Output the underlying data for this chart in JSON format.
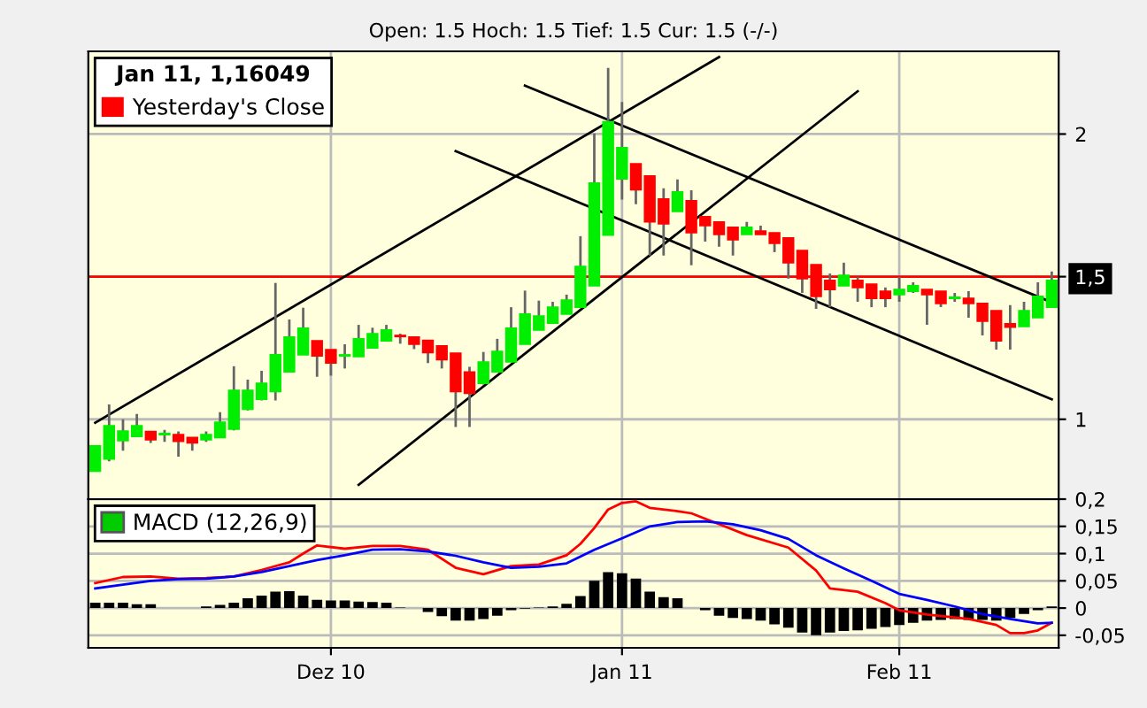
{
  "chart_data": [
    {
      "type": "candlestick",
      "subtitle": "Open: 1.5 Hoch: 1.5 Tief: 1.5 Cur: 1.5 (-/-)",
      "categories": [
        null,
        null,
        null,
        null,
        null,
        null,
        null,
        null,
        null,
        null,
        null,
        null,
        null,
        null,
        null,
        null,
        null,
        null,
        null,
        null,
        null,
        null,
        null,
        null,
        null,
        null,
        null,
        null,
        null,
        null,
        null,
        null,
        null,
        null,
        null,
        null,
        null,
        null,
        null,
        null,
        null,
        null,
        null,
        null,
        null,
        null,
        null,
        null,
        null,
        null,
        null,
        null,
        null,
        null,
        null,
        null,
        null,
        null,
        null,
        null,
        null,
        null,
        null,
        null,
        null,
        null,
        null,
        null,
        null,
        null
      ],
      "ohlc": [
        [
          0.818,
          0.907,
          0.818,
          0.907
        ],
        [
          0.861,
          1.052,
          0.853,
          0.977
        ],
        [
          0.925,
          1.0,
          0.89,
          0.959
        ],
        [
          0.94,
          1.019,
          0.94,
          0.977
        ],
        [
          0.957,
          0.957,
          0.917,
          0.928
        ],
        [
          0.946,
          0.963,
          0.921,
          0.95
        ],
        [
          0.946,
          0.957,
          0.869,
          0.923
        ],
        [
          0.936,
          0.936,
          0.89,
          0.917
        ],
        [
          0.928,
          0.957,
          0.921,
          0.946
        ],
        [
          0.936,
          1.025,
          0.936,
          0.99
        ],
        [
          0.965,
          1.186,
          0.961,
          1.101
        ],
        [
          1.035,
          1.139,
          1.031,
          1.101
        ],
        [
          1.07,
          1.17,
          1.066,
          1.126
        ],
        [
          1.097,
          1.478,
          1.066,
          1.226
        ],
        [
          1.166,
          1.35,
          1.166,
          1.288
        ],
        [
          1.226,
          1.391,
          1.226,
          1.319
        ],
        [
          1.275,
          1.275,
          1.149,
          1.222
        ],
        [
          1.244,
          1.244,
          1.153,
          1.197
        ],
        [
          1.222,
          1.263,
          1.178,
          1.226
        ],
        [
          1.22,
          1.331,
          1.22,
          1.282
        ],
        [
          1.25,
          1.321,
          1.25,
          1.3
        ],
        [
          1.275,
          1.331,
          1.275,
          1.313
        ],
        [
          1.294,
          1.3,
          1.265,
          1.29
        ],
        [
          1.288,
          1.288,
          1.246,
          1.263
        ],
        [
          1.277,
          1.277,
          1.197,
          1.234
        ],
        [
          1.257,
          1.257,
          1.178,
          1.209
        ],
        [
          1.232,
          1.232,
          0.973,
          1.097
        ],
        [
          1.166,
          1.184,
          0.973,
          1.091
        ],
        [
          1.126,
          1.236,
          1.122,
          1.201
        ],
        [
          1.166,
          1.282,
          1.166,
          1.238
        ],
        [
          1.201,
          1.393,
          1.201,
          1.319
        ],
        [
          1.263,
          1.451,
          1.263,
          1.369
        ],
        [
          1.313,
          1.416,
          1.313,
          1.362
        ],
        [
          1.337,
          1.412,
          1.337,
          1.393
        ],
        [
          1.369,
          1.437,
          1.369,
          1.418
        ],
        [
          1.393,
          1.642,
          1.393,
          1.536
        ],
        [
          1.468,
          2.002,
          1.468,
          1.828
        ],
        [
          1.646,
          2.232,
          1.646,
          2.043
        ],
        [
          1.843,
          2.112,
          1.77,
          1.952
        ],
        [
          1.896,
          1.896,
          1.754,
          1.805
        ],
        [
          1.853,
          1.853,
          1.574,
          1.692
        ],
        [
          1.772,
          1.81,
          1.574,
          1.685
        ],
        [
          1.729,
          1.841,
          1.729,
          1.797
        ],
        [
          1.766,
          1.803,
          1.54,
          1.654
        ],
        [
          1.71,
          1.71,
          1.623,
          1.679
        ],
        [
          1.692,
          1.692,
          1.605,
          1.648
        ],
        [
          1.673,
          1.673,
          1.574,
          1.629
        ],
        [
          1.648,
          1.692,
          1.648,
          1.673
        ],
        [
          1.66,
          1.679,
          1.648,
          1.648
        ],
        [
          1.654,
          1.654,
          1.586,
          1.617
        ],
        [
          1.636,
          1.636,
          1.493,
          1.549
        ],
        [
          1.592,
          1.592,
          1.443,
          1.493
        ],
        [
          1.542,
          1.542,
          1.387,
          1.431
        ],
        [
          1.487,
          1.511,
          1.393,
          1.455
        ],
        [
          1.468,
          1.549,
          1.468,
          1.505
        ],
        [
          1.487,
          1.499,
          1.412,
          1.462
        ],
        [
          1.474,
          1.474,
          1.393,
          1.424
        ],
        [
          1.449,
          1.462,
          1.393,
          1.424
        ],
        [
          1.437,
          1.499,
          1.412,
          1.455
        ],
        [
          1.449,
          1.48,
          1.443,
          1.468
        ],
        [
          1.455,
          1.455,
          1.331,
          1.437
        ],
        [
          1.449,
          1.449,
          1.393,
          1.406
        ],
        [
          1.424,
          1.443,
          1.412,
          1.428
        ],
        [
          1.424,
          1.449,
          1.356,
          1.406
        ],
        [
          1.406,
          1.406,
          1.294,
          1.344
        ],
        [
          1.381,
          1.381,
          1.244,
          1.275
        ],
        [
          1.335,
          1.4,
          1.244,
          1.323
        ],
        [
          1.325,
          1.412,
          1.325,
          1.381
        ],
        [
          1.356,
          1.48,
          1.356,
          1.431
        ],
        [
          1.393,
          1.518,
          1.393,
          1.487
        ]
      ],
      "series": [
        {
          "type": "line",
          "color": "#000000",
          "values": [
            0.988,
            null,
            null,
            null,
            null,
            null,
            null,
            null,
            null,
            null,
            null,
            null,
            null,
            null,
            null,
            null,
            null,
            null,
            null,
            null,
            null,
            null,
            null,
            null,
            null,
            null,
            null,
            null,
            null,
            null,
            null,
            null,
            null,
            null,
            null,
            null,
            null,
            null,
            null,
            null,
            null,
            null,
            null,
            null,
            null,
            2.27,
            null,
            null,
            null,
            null,
            null,
            null,
            null,
            null,
            null,
            null,
            null,
            null,
            null,
            null,
            null,
            null,
            null,
            null,
            null,
            null,
            null,
            null,
            null,
            null
          ]
        },
        {
          "type": "line",
          "color": "#000000",
          "values": [
            null,
            null,
            null,
            null,
            null,
            null,
            null,
            null,
            null,
            null,
            null,
            null,
            null,
            null,
            null,
            null,
            null,
            null,
            null,
            0.77,
            null,
            null,
            null,
            null,
            null,
            null,
            null,
            null,
            null,
            null,
            null,
            null,
            null,
            null,
            null,
            null,
            null,
            null,
            null,
            null,
            null,
            null,
            null,
            null,
            null,
            null,
            null,
            null,
            null,
            null,
            null,
            null,
            null,
            null,
            null,
            2.15,
            null,
            null,
            null,
            null,
            null,
            null,
            null,
            null,
            null,
            null,
            null,
            null,
            null,
            null
          ]
        },
        {
          "type": "line",
          "color": "#000000",
          "values": [
            null,
            null,
            null,
            null,
            null,
            null,
            null,
            null,
            null,
            null,
            null,
            null,
            null,
            null,
            null,
            null,
            null,
            null,
            null,
            null,
            null,
            null,
            null,
            null,
            null,
            null,
            null,
            null,
            null,
            null,
            null,
            2.17,
            null,
            null,
            null,
            null,
            null,
            null,
            null,
            null,
            null,
            null,
            null,
            null,
            null,
            null,
            null,
            null,
            null,
            null,
            null,
            null,
            null,
            null,
            null,
            null,
            null,
            null,
            null,
            null,
            null,
            null,
            null,
            null,
            null,
            null,
            null,
            null,
            null,
            1.41
          ]
        },
        {
          "type": "line",
          "color": "#000000",
          "values": [
            null,
            null,
            null,
            null,
            null,
            null,
            null,
            null,
            null,
            null,
            null,
            null,
            null,
            null,
            null,
            null,
            null,
            null,
            null,
            null,
            null,
            null,
            null,
            null,
            null,
            null,
            1.94,
            null,
            null,
            null,
            null,
            null,
            null,
            null,
            null,
            null,
            null,
            null,
            null,
            null,
            null,
            null,
            null,
            null,
            null,
            null,
            null,
            null,
            null,
            null,
            null,
            null,
            null,
            null,
            null,
            null,
            null,
            null,
            null,
            null,
            null,
            null,
            null,
            null,
            null,
            null,
            null,
            null,
            null,
            1.07
          ]
        }
      ],
      "ylim": [
        0.72,
        2.29
      ],
      "yticks": [
        1,
        {
          "value": 1.5,
          "label": "1,5"
        },
        2
      ],
      "ref_lines": [
        {
          "axis": "y",
          "value": 1.5,
          "label": "Yesterday's Close",
          "color": "#ff0000"
        }
      ],
      "annotations": [
        "Jan 11, 1,16049"
      ],
      "grid": true,
      "legend": "top left",
      "tick_labels": "y"
    },
    {
      "type": "bar",
      "categories": [
        null,
        null,
        null,
        null,
        null,
        null,
        null,
        null,
        null,
        null,
        null,
        null,
        null,
        null,
        null,
        null,
        null,
        "Dez 10",
        null,
        null,
        null,
        null,
        null,
        null,
        null,
        null,
        null,
        null,
        null,
        null,
        null,
        null,
        null,
        null,
        null,
        null,
        null,
        null,
        "Jan 11",
        null,
        null,
        null,
        null,
        null,
        null,
        null,
        null,
        null,
        null,
        null,
        null,
        null,
        null,
        null,
        null,
        null,
        null,
        null,
        "Feb 11",
        null,
        null,
        null,
        null,
        null,
        null,
        null,
        null,
        null,
        null,
        null
      ],
      "series": [
        {
          "type": "bar",
          "color": "#000000",
          "values": [
            0.01,
            0.01,
            0.01,
            0.007,
            0.007,
            null,
            null,
            null,
            0.003,
            0.006,
            0.01,
            0.018,
            0.023,
            0.03,
            0.031,
            0.023,
            0.015,
            0.014,
            0.014,
            0.012,
            0.011,
            0.01,
            0.001,
            null,
            -0.007,
            -0.015,
            -0.023,
            -0.023,
            -0.02,
            -0.014,
            -0.004,
            -0.001,
            0.001,
            0.003,
            0.008,
            0.022,
            0.05,
            0.066,
            0.064,
            0.054,
            0.03,
            0.02,
            0.018,
            null,
            -0.004,
            -0.014,
            -0.018,
            -0.02,
            -0.023,
            -0.03,
            -0.036,
            -0.045,
            -0.05,
            -0.045,
            -0.042,
            -0.041,
            -0.038,
            -0.035,
            -0.031,
            -0.027,
            -0.023,
            -0.022,
            -0.02,
            -0.022,
            -0.022,
            -0.023,
            -0.018,
            -0.011,
            -0.004,
            0.003
          ]
        },
        {
          "type": "line",
          "color": "#ff0000",
          "values": [
            0.046,
            null,
            0.057,
            null,
            0.058,
            null,
            0.054,
            null,
            0.055,
            null,
            0.058,
            null,
            0.07,
            null,
            0.084,
            0.1,
            0.115,
            null,
            0.109,
            null,
            0.114,
            null,
            0.114,
            null,
            0.107,
            null,
            0.074,
            null,
            0.062,
            null,
            0.077,
            null,
            0.08,
            null,
            0.097,
            0.118,
            0.147,
            0.181,
            0.193,
            0.196,
            0.184,
            null,
            0.178,
            0.174,
            null,
            0.154,
            null,
            0.134,
            null,
            null,
            0.111,
            null,
            0.069,
            0.036,
            null,
            0.03,
            null,
            0.009,
            -0.004,
            null,
            -0.012,
            null,
            null,
            -0.02,
            null,
            -0.031,
            -0.046,
            -0.046,
            -0.041,
            -0.027
          ]
        },
        {
          "type": "line",
          "color": "#0000ff",
          "values": [
            0.036,
            null,
            0.043,
            null,
            0.05,
            null,
            0.053,
            null,
            0.054,
            null,
            0.058,
            null,
            0.066,
            null,
            0.077,
            null,
            0.088,
            null,
            0.097,
            null,
            0.107,
            null,
            0.108,
            null,
            0.104,
            null,
            0.096,
            null,
            0.084,
            null,
            0.074,
            null,
            0.076,
            null,
            0.082,
            null,
            0.107,
            null,
            0.128,
            null,
            0.15,
            null,
            0.158,
            null,
            0.159,
            null,
            0.154,
            null,
            0.143,
            null,
            0.127,
            null,
            0.097,
            null,
            0.073,
            null,
            0.05,
            null,
            0.026,
            null,
            0.015,
            null,
            0.003,
            null,
            -0.011,
            null,
            -0.02,
            null,
            -0.028,
            -0.027
          ]
        }
      ],
      "ylim": [
        -0.073,
        0.2
      ],
      "yticks": [
        {
          "value": 0.2,
          "label": "0,2"
        },
        {
          "value": 0.15,
          "label": "0,15"
        },
        {
          "value": 0.1,
          "label": "0,1"
        },
        {
          "value": 0.05,
          "label": "0,05"
        },
        0,
        {
          "value": -0.05,
          "label": "-0,05"
        }
      ],
      "annotations": [
        "MACD (12,26,9)"
      ],
      "grid": true,
      "legend": "top left"
    }
  ]
}
